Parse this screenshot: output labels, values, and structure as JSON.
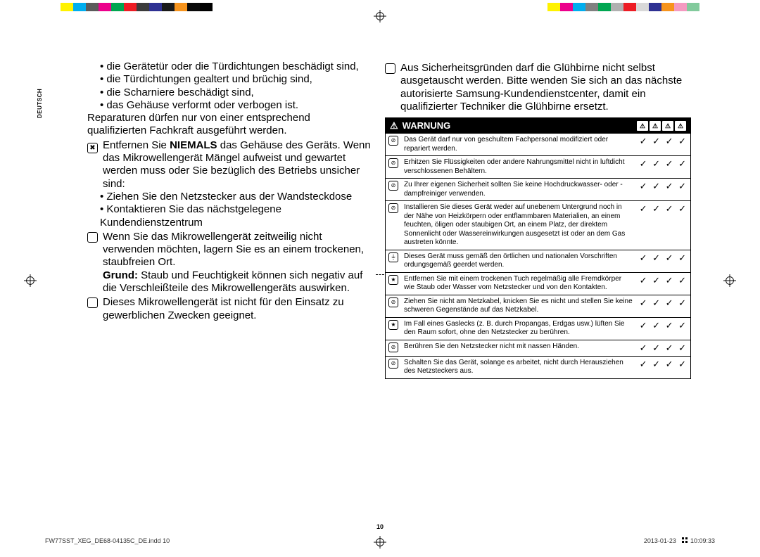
{
  "colorbar_left": [
    "#ffffff",
    "#fff200",
    "#00aeef",
    "#5b5b5b",
    "#ec008c",
    "#00a651",
    "#ed1c24",
    "#3b3b3b",
    "#2e3192",
    "#1a1a1a",
    "#f7941d",
    "#0a0a0a",
    "#000000"
  ],
  "colorbar_right": [
    "#fff200",
    "#ec008c",
    "#00aeef",
    "#808080",
    "#00a651",
    "#b0b0b0",
    "#ed1c24",
    "#d8d8d8",
    "#2e3192",
    "#f7941d",
    "#f49ac1",
    "#82ca9c",
    "#ffffff"
  ],
  "side_tab": "DEUTSCH",
  "left": {
    "bullets1": [
      "die Gerätetür oder die Türdichtungen beschädigt sind,",
      "die Türdichtungen gealtert und brüchig sind,",
      "die Scharniere beschädigt sind,",
      "das Gehäuse verformt oder verbogen ist."
    ],
    "para1a": "Reparaturen dürfen nur von einer entsprechend",
    "para1b": "qualifizierten Fachkraft ausgeführt werden.",
    "p2_pre": "Entfernen Sie ",
    "p2_bold": "NIEMALS",
    "p2_post": " das Gehäuse des Geräts. Wenn das Mikrowellengerät Mängel aufweist und gewartet werden muss oder Sie bezüglich des Betriebs unsicher sind:",
    "bullets2": [
      "Ziehen Sie den Netzstecker aus der Wandsteckdose",
      "Kontaktieren Sie das nächstgelegene Kundendienstzentrum"
    ],
    "p3": "Wenn Sie das Mikrowellengerät zeitweilig nicht verwenden möchten, lagern Sie es an einem trockenen, staubfreien Ort.",
    "p3_bold": "Grund:",
    "p3_post": " Staub und Feuchtigkeit können sich negativ auf die Verschleißteile des Mikrowellengeräts auswirken.",
    "p4": "Dieses Mikrowellengerät ist nicht für den Einsatz zu gewerblichen Zwecken geeignet."
  },
  "right": {
    "p1": "Aus Sicherheitsgründen darf die Glühbirne nicht selbst ausgetauscht werden. Bitte wenden Sie sich an das nächste autorisierte Samsung-Kundendienstcenter, damit ein qualifizierter Techniker die Glühbirne ersetzt.",
    "warning_title": "WARNUNG",
    "rows": [
      {
        "icon": "⊘",
        "text": "Das Gerät darf nur von geschultem Fachpersonal modifiziert oder repariert werden."
      },
      {
        "icon": "⊘",
        "text": "Erhitzen Sie Flüssigkeiten oder andere Nahrungsmittel nicht in luftdicht verschlossenen Behältern."
      },
      {
        "icon": "⊘",
        "text": "Zu Ihrer eigenen Sicherheit sollten Sie keine Hochdruckwasser- oder -dampfreiniger verwenden."
      },
      {
        "icon": "⊘",
        "text": "Installieren Sie dieses Gerät weder auf unebenem Untergrund noch in der Nähe von Heizkörpern oder entflammbaren Materialien, an einem feuchten, öligen oder staubigen Ort, an einem Platz, der direktem Sonnenlicht oder Wassereinwirkungen ausgesetzt ist oder an dem Gas austreten könnte."
      },
      {
        "icon": "⏚",
        "text": "Dieses Gerät muss gemäß den örtlichen und nationalen Vorschriften ordungsgemäß geerdet werden."
      },
      {
        "icon": "★",
        "text": "Entfernen Sie mit einem trockenen Tuch regelmäßig alle Fremdkörper wie Staub oder Wasser vom Netzstecker und von den Kontakten."
      },
      {
        "icon": "⊘",
        "text": "Ziehen Sie nicht am Netzkabel, knicken Sie es nicht und stellen Sie keine schweren Gegenstände auf das Netzkabel."
      },
      {
        "icon": "★",
        "text": "Im Fall eines Gaslecks (z. B. durch Propangas, Erdgas usw.) lüften Sie den Raum sofort, ohne den Netzstecker zu berühren."
      },
      {
        "icon": "⊘",
        "text": "Berühren Sie den Netzstecker nicht mit nassen Händen."
      },
      {
        "icon": "⊘",
        "text": "Schalten Sie das Gerät, solange es arbeitet, nicht durch Herausziehen des Netzsteckers aus."
      }
    ],
    "checks": "✓ ✓ ✓ ✓"
  },
  "page_num": "10",
  "footer_left": "FW77SST_XEG_DE68-04135C_DE.indd   10",
  "footer_right_date": "2013-01-23",
  "footer_right_time": "10:09:33"
}
